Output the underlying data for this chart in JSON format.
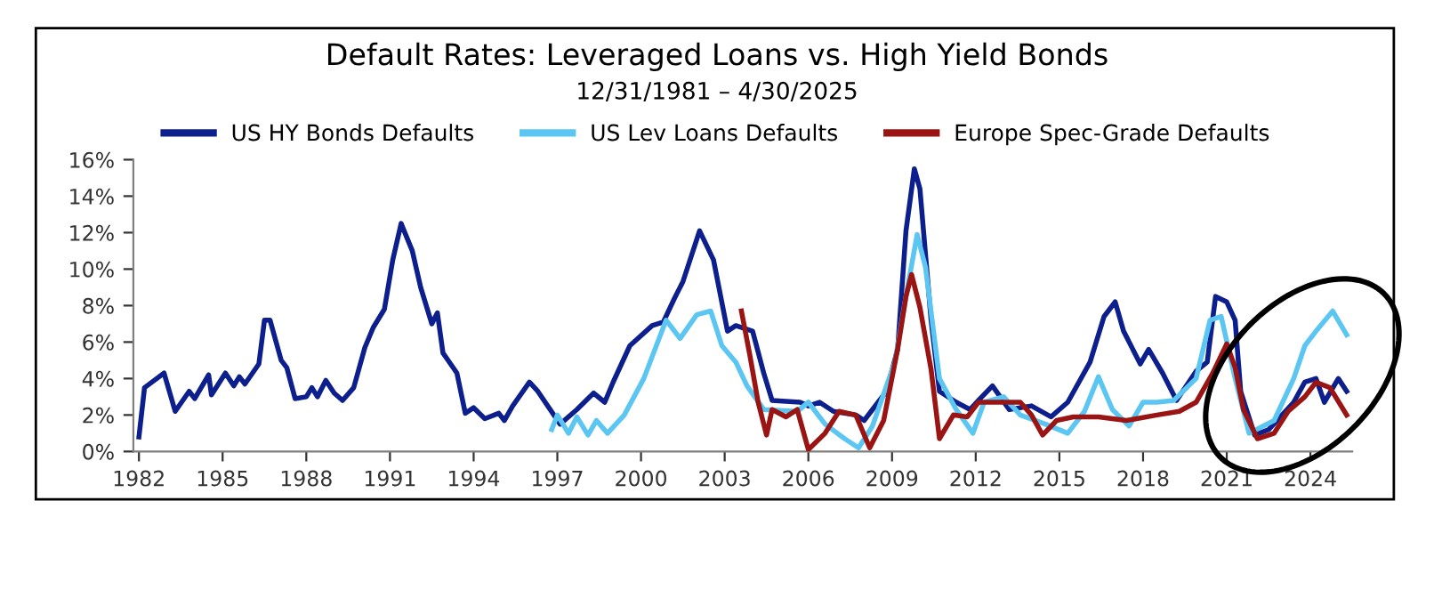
{
  "chart_data": {
    "type": "line",
    "title": "Default Rates: Leveraged Loans vs. High Yield Bonds",
    "subtitle": "12/31/1981 – 4/30/2025",
    "legend": "top",
    "grid": false,
    "marker": "none",
    "line_style": "solid",
    "xlim": [
      1981.8,
      2025.5
    ],
    "xticks": [
      1982,
      1985,
      1988,
      1991,
      1994,
      1997,
      2000,
      2003,
      2006,
      2009,
      2012,
      2015,
      2018,
      2021,
      2024
    ],
    "ylim": [
      0,
      16
    ],
    "yticks": [
      {
        "value": 0,
        "label": "0%"
      },
      {
        "value": 2,
        "label": "2%"
      },
      {
        "value": 4,
        "label": "4%"
      },
      {
        "value": 6,
        "label": "6%"
      },
      {
        "value": 8,
        "label": "8%"
      },
      {
        "value": 10,
        "label": "10%"
      },
      {
        "value": 12,
        "label": "12%"
      },
      {
        "value": 14,
        "label": "14%"
      },
      {
        "value": 16,
        "label": "16%"
      }
    ],
    "series": [
      {
        "name": "US HY Bonds Defaults",
        "color": "#0d1f8c",
        "x": [
          1982.0,
          1982.2,
          1982.9,
          1983.3,
          1983.8,
          1984.0,
          1984.5,
          1984.6,
          1985.1,
          1985.4,
          1985.6,
          1985.8,
          1986.3,
          1986.5,
          1986.7,
          1987.1,
          1987.3,
          1987.6,
          1988.0,
          1988.2,
          1988.4,
          1988.7,
          1989.0,
          1989.3,
          1989.7,
          1990.1,
          1990.4,
          1990.8,
          1991.1,
          1991.4,
          1991.8,
          1992.1,
          1992.5,
          1992.7,
          1992.9,
          1993.4,
          1993.7,
          1994.0,
          1994.4,
          1994.9,
          1995.1,
          1995.4,
          1996.0,
          1996.3,
          1997.1,
          1997.7,
          1998.3,
          1998.7,
          1999.0,
          1999.6,
          2000.4,
          2000.8,
          2001.2,
          2001.5,
          2002.1,
          2002.6,
          2003.1,
          2003.4,
          2004.0,
          2004.4,
          2004.7,
          2005.7,
          2006.0,
          2006.4,
          2006.9,
          2007.7,
          2008.0,
          2008.8,
          2009.2,
          2009.5,
          2009.8,
          2010.0,
          2010.4,
          2010.7,
          2011.3,
          2011.8,
          2012.1,
          2012.6,
          2013.2,
          2014.0,
          2014.7,
          2015.3,
          2016.1,
          2016.6,
          2017.0,
          2017.3,
          2017.9,
          2018.2,
          2018.7,
          2019.2,
          2019.9,
          2020.3,
          2020.6,
          2021.0,
          2021.3,
          2021.5,
          2022.0,
          2022.5,
          2023.4,
          2023.8,
          2024.2,
          2024.5,
          2025.0,
          2025.3
        ],
        "values": [
          0.8,
          3.5,
          4.3,
          2.2,
          3.3,
          2.9,
          4.2,
          3.1,
          4.3,
          3.6,
          4.1,
          3.7,
          4.8,
          7.2,
          7.2,
          5.0,
          4.6,
          2.9,
          3.0,
          3.5,
          3.0,
          3.9,
          3.2,
          2.8,
          3.5,
          5.7,
          6.8,
          7.8,
          10.5,
          12.5,
          11.0,
          9.0,
          7.0,
          7.6,
          5.4,
          4.3,
          2.1,
          2.4,
          1.8,
          2.1,
          1.7,
          2.5,
          3.8,
          3.3,
          1.5,
          2.3,
          3.2,
          2.7,
          3.8,
          5.8,
          6.9,
          7.1,
          8.4,
          9.3,
          12.1,
          10.5,
          6.6,
          6.9,
          6.6,
          4.3,
          2.8,
          2.7,
          2.5,
          2.7,
          2.2,
          2.0,
          1.7,
          3.3,
          5.6,
          12.1,
          15.5,
          14.4,
          7.2,
          3.3,
          2.7,
          2.3,
          2.8,
          3.6,
          2.3,
          2.5,
          1.9,
          2.7,
          4.9,
          7.4,
          8.2,
          6.6,
          4.8,
          5.6,
          4.3,
          2.8,
          4.4,
          4.9,
          8.5,
          8.2,
          7.2,
          3.3,
          0.9,
          1.2,
          2.7,
          3.8,
          4.0,
          2.7,
          4.0,
          3.3
        ]
      },
      {
        "name": "US Lev Loans Defaults",
        "color": "#5cc6f2",
        "x": [
          1996.8,
          1997.0,
          1997.4,
          1997.7,
          1998.1,
          1998.4,
          1998.8,
          1999.4,
          2000.1,
          2000.9,
          2001.4,
          2002.0,
          2002.5,
          2002.9,
          2003.4,
          2003.8,
          2004.4,
          2005.6,
          2006.0,
          2006.6,
          2007.3,
          2007.8,
          2008.3,
          2009.1,
          2009.5,
          2009.9,
          2010.2,
          2010.7,
          2011.3,
          2011.9,
          2012.3,
          2013.0,
          2013.6,
          2014.5,
          2015.3,
          2015.9,
          2016.4,
          2016.9,
          2017.5,
          2018.0,
          2018.5,
          2019.1,
          2019.9,
          2020.4,
          2020.8,
          2021.3,
          2021.8,
          2022.7,
          2023.4,
          2023.8,
          2024.2,
          2024.8,
          2025.3
        ],
        "values": [
          1.2,
          2.0,
          1.0,
          1.9,
          0.9,
          1.7,
          1.0,
          2.0,
          4.0,
          7.2,
          6.2,
          7.5,
          7.7,
          5.8,
          4.9,
          3.6,
          2.3,
          2.2,
          2.7,
          1.5,
          0.7,
          0.2,
          1.4,
          4.9,
          8.5,
          11.9,
          10.1,
          4.0,
          2.3,
          1.0,
          2.7,
          3.0,
          2.0,
          1.5,
          1.0,
          2.2,
          4.1,
          2.3,
          1.4,
          2.7,
          2.7,
          2.8,
          4.0,
          7.2,
          7.4,
          4.0,
          1.0,
          1.7,
          4.0,
          5.8,
          6.6,
          7.7,
          6.4
        ]
      },
      {
        "name": "Europe Spec-Grade Defaults",
        "color": "#9a1414",
        "x": [
          2003.6,
          2003.9,
          2004.2,
          2004.5,
          2004.7,
          2005.2,
          2005.6,
          2006.0,
          2006.6,
          2007.1,
          2007.7,
          2008.2,
          2008.7,
          2009.2,
          2009.5,
          2009.7,
          2010.0,
          2010.4,
          2010.7,
          2011.2,
          2011.7,
          2012.1,
          2012.8,
          2013.6,
          2014.0,
          2014.4,
          2014.9,
          2015.5,
          2016.4,
          2017.4,
          2018.5,
          2019.3,
          2019.9,
          2020.5,
          2021.0,
          2021.3,
          2021.6,
          2022.1,
          2022.7,
          2023.2,
          2023.8,
          2024.2,
          2024.7,
          2025.3
        ],
        "values": [
          7.7,
          5.3,
          2.7,
          0.9,
          2.3,
          1.9,
          2.3,
          0.1,
          1.0,
          2.2,
          2.0,
          0.2,
          1.7,
          5.6,
          8.5,
          9.7,
          7.9,
          4.5,
          0.7,
          2.0,
          1.9,
          2.7,
          2.7,
          2.7,
          2.0,
          0.9,
          1.7,
          1.9,
          1.9,
          1.7,
          2.0,
          2.2,
          2.7,
          4.3,
          5.9,
          4.6,
          2.3,
          0.7,
          1.0,
          2.2,
          3.0,
          3.8,
          3.5,
          2.0
        ]
      }
    ]
  }
}
